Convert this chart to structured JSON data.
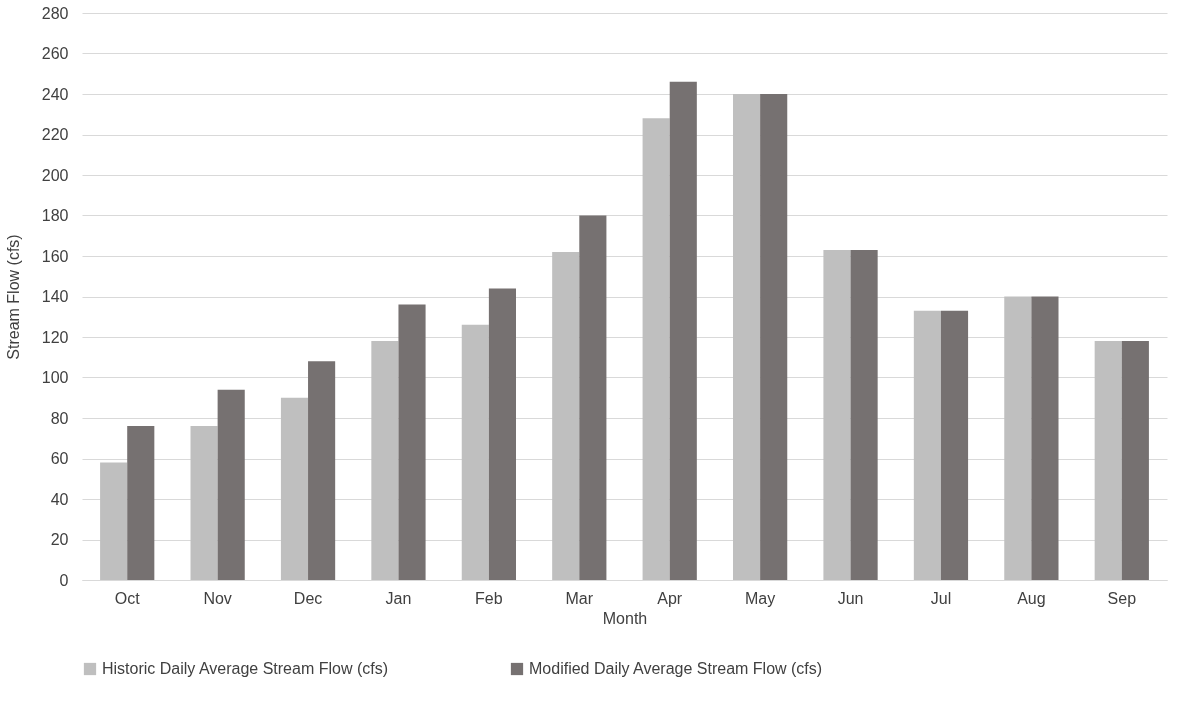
{
  "chart_data": {
    "type": "bar",
    "xlabel": "Month",
    "ylabel": "Stream Flow (cfs)",
    "categories": [
      "Oct",
      "Nov",
      "Dec",
      "Jan",
      "Feb",
      "Mar",
      "Apr",
      "May",
      "Jun",
      "Jul",
      "Aug",
      "Sep"
    ],
    "series": [
      {
        "name": "Historic Daily Average Stream Flow (cfs)",
        "color": "#bfbfbf",
        "values": [
          58,
          76,
          90,
          118,
          126,
          162,
          228,
          240,
          163,
          133,
          140,
          118
        ]
      },
      {
        "name": "Modified Daily Average Stream Flow  (cfs)",
        "color": "#767171",
        "values": [
          76,
          94,
          108,
          136,
          144,
          180,
          246,
          240,
          163,
          133,
          140,
          118
        ]
      }
    ],
    "ylim": [
      0,
      280
    ],
    "yticks": [
      0,
      20,
      40,
      60,
      80,
      100,
      120,
      140,
      160,
      180,
      200,
      220,
      240,
      260,
      280
    ],
    "grid": "y",
    "legend": "bottom"
  }
}
